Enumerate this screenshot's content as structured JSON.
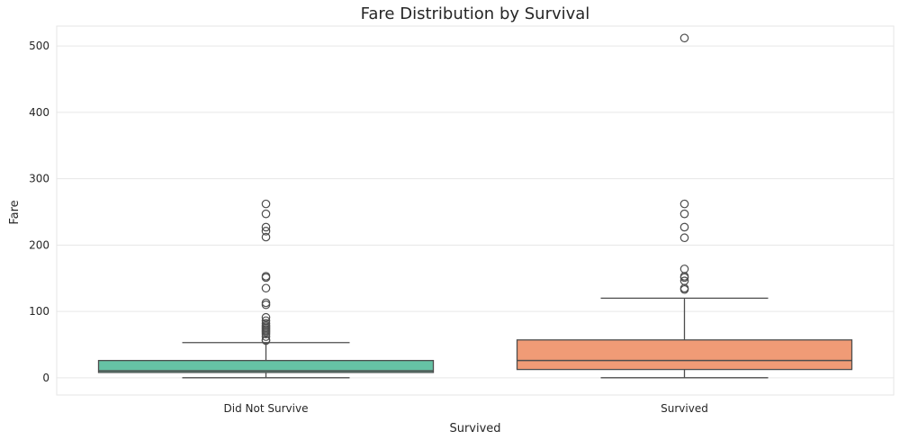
{
  "chart_data": {
    "type": "box",
    "title": "Fare Distribution by Survival",
    "xlabel": "Survived",
    "ylabel": "Fare",
    "ylim": [
      -26,
      530
    ],
    "yticks": [
      0,
      100,
      200,
      300,
      400,
      500
    ],
    "grid": true,
    "categories": [
      "Did Not Survive",
      "Survived"
    ],
    "colors": [
      "#66c2a5",
      "#f09b76"
    ],
    "edge_color": "#4d4d4d",
    "grid_color": "#e6e6e6",
    "boxes": [
      {
        "category": "Did Not Survive",
        "whisker_low": 0,
        "q1": 8,
        "median": 10.5,
        "q3": 26,
        "whisker_high": 53,
        "outliers": [
          262,
          247,
          227,
          221,
          212,
          153,
          151,
          135,
          113,
          110,
          91,
          86,
          82,
          79,
          77,
          75,
          73,
          71,
          69,
          66,
          62,
          57,
          56
        ]
      },
      {
        "category": "Survived",
        "whisker_low": 0,
        "q1": 12.5,
        "median": 26,
        "q3": 57,
        "whisker_high": 120,
        "outliers": [
          512,
          262,
          247,
          227,
          211,
          164,
          153,
          151,
          146,
          135,
          133
        ]
      }
    ]
  }
}
